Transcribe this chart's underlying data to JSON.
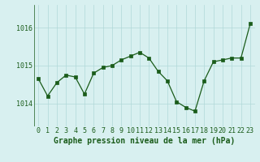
{
  "x": [
    0,
    1,
    2,
    3,
    4,
    5,
    6,
    7,
    8,
    9,
    10,
    11,
    12,
    13,
    14,
    15,
    16,
    17,
    18,
    19,
    20,
    21,
    22,
    23
  ],
  "y": [
    1014.65,
    1014.2,
    1014.55,
    1014.75,
    1014.7,
    1014.25,
    1014.8,
    1014.95,
    1015.0,
    1015.15,
    1015.25,
    1015.35,
    1015.2,
    1014.85,
    1014.6,
    1014.05,
    1013.9,
    1013.8,
    1014.6,
    1015.1,
    1015.15,
    1015.2,
    1015.2,
    1016.1
  ],
  "line_color": "#1a5c1a",
  "marker_color": "#1a5c1a",
  "bg_color": "#d8f0f0",
  "grid_color": "#b0d8d8",
  "xlabel": "Graphe pression niveau de la mer (hPa)",
  "xlabel_fontsize": 7,
  "tick_fontsize": 6,
  "yticks": [
    1014,
    1015,
    1016
  ],
  "ylim": [
    1013.4,
    1016.6
  ],
  "xlim": [
    -0.5,
    23.5
  ]
}
